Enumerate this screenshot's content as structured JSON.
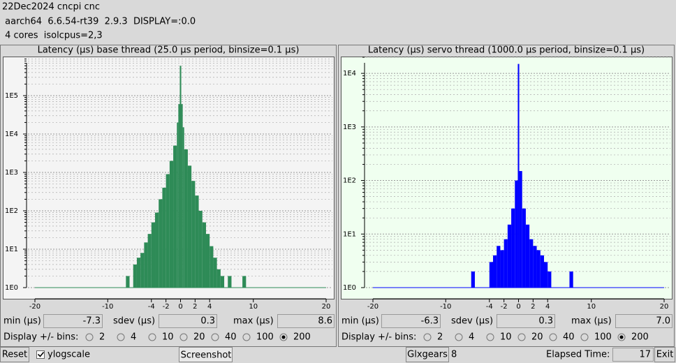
{
  "header": {
    "lines": [
      "22Dec2024 cncpi cnc",
      " aarch64  6.6.54-rt39  2.9.3  DISPLAY=:0.0",
      " 4 cores  isolcpus=2,3"
    ]
  },
  "chart_data": [
    {
      "type": "histogram",
      "title": "Latency (µs) base thread (25.0 µs period, binsize=0.1 µs)",
      "color": "#2e8b57",
      "background": "#f4f4f4",
      "bins": [
        -7.5,
        -7,
        -6.5,
        -6,
        -5.5,
        -5,
        -4.5,
        -4,
        -3.5,
        -3,
        -2.5,
        -2,
        -1.5,
        -1,
        -0.5,
        -0.3,
        -0.1,
        0.1,
        0.3,
        0.5,
        1,
        1.5,
        2,
        2.5,
        3,
        3.5,
        4,
        4.5,
        5,
        5.5,
        6,
        6.5,
        7,
        7.5,
        8,
        8.5,
        9
      ],
      "values": [
        2,
        1,
        4,
        6,
        8,
        15,
        25,
        50,
        90,
        200,
        400,
        900,
        2000,
        5000,
        20000,
        60000,
        600000,
        60000,
        15000,
        4000,
        1500,
        600,
        250,
        100,
        50,
        25,
        12,
        6,
        3,
        2,
        1,
        2,
        1,
        1,
        1,
        2
      ],
      "xlim": [
        -20,
        20
      ],
      "xticks": [
        -20,
        -10,
        -4,
        -2,
        0,
        2,
        4,
        10,
        20
      ],
      "ylim": [
        1,
        1000000
      ],
      "log_y": true,
      "grid": true,
      "minor_grid": true,
      "yticks": [
        {
          "value": 1,
          "label": "1E0"
        },
        {
          "value": 10,
          "label": "1E1"
        },
        {
          "value": 100,
          "label": "1E2"
        },
        {
          "value": 1000,
          "label": "1E3"
        },
        {
          "value": 10000,
          "label": "1E4"
        },
        {
          "value": 100000,
          "label": "1E5"
        }
      ]
    },
    {
      "type": "histogram",
      "title": "Latency (µs) servo thread (1000.0 µs period, binsize=0.1 µs)",
      "color": "#0000ff",
      "background": "#f0fff0",
      "bins": [
        -6.5,
        -6,
        -5.5,
        -5,
        -4.5,
        -4,
        -3.5,
        -3,
        -2.5,
        -2,
        -1.5,
        -1,
        -0.5,
        -0.1,
        0.1,
        0.5,
        1,
        1.5,
        2,
        2.5,
        3,
        3.5,
        4,
        4.5,
        5,
        5.5,
        6,
        6.5,
        7,
        7.5
      ],
      "values": [
        2,
        1,
        1,
        1,
        1,
        3,
        4,
        6,
        5,
        8,
        15,
        30,
        100,
        15000,
        150,
        30,
        15,
        8,
        6,
        5,
        4,
        3,
        2,
        1,
        1,
        1,
        1,
        1,
        2
      ],
      "xlim": [
        -20,
        20
      ],
      "xticks": [
        -20,
        -10,
        -4,
        -2,
        0,
        2,
        4,
        10,
        20
      ],
      "ylim": [
        1,
        20000
      ],
      "log_y": true,
      "grid": true,
      "minor_grid": true,
      "yticks": [
        {
          "value": 1,
          "label": "1E0"
        },
        {
          "value": 10,
          "label": "1E1"
        },
        {
          "value": 100,
          "label": "1E2"
        },
        {
          "value": 1000,
          "label": "1E3"
        },
        {
          "value": 10000,
          "label": "1E4"
        }
      ]
    }
  ],
  "panels": [
    {
      "min_label": "min (µs)",
      "min": "-7.3",
      "sdev_label": "sdev (µs)",
      "sdev": "0.3",
      "max_label": "max (µs)",
      "max": "8.6",
      "bins_label": "Display +/- bins:",
      "bin_options": [
        "2",
        "4",
        "10",
        "20",
        "40",
        "100",
        "200"
      ],
      "selected": "200"
    },
    {
      "min_label": "min (µs)",
      "min": "-6.3",
      "sdev_label": "sdev (µs)",
      "sdev": "0.3",
      "max_label": "max (µs)",
      "max": "7.0",
      "bins_label": "Display +/- bins:",
      "bin_options": [
        "2",
        "4",
        "10",
        "20",
        "40",
        "100",
        "200"
      ],
      "selected": "200"
    }
  ],
  "footer": {
    "reset": "Reset",
    "ylogscale": "ylogscale",
    "screenshot": "Screenshot",
    "glxgears": "Glxgears",
    "glxgears_count": "8",
    "elapsed_label": "Elapsed Time:",
    "elapsed": "17",
    "exit": "Exit"
  }
}
